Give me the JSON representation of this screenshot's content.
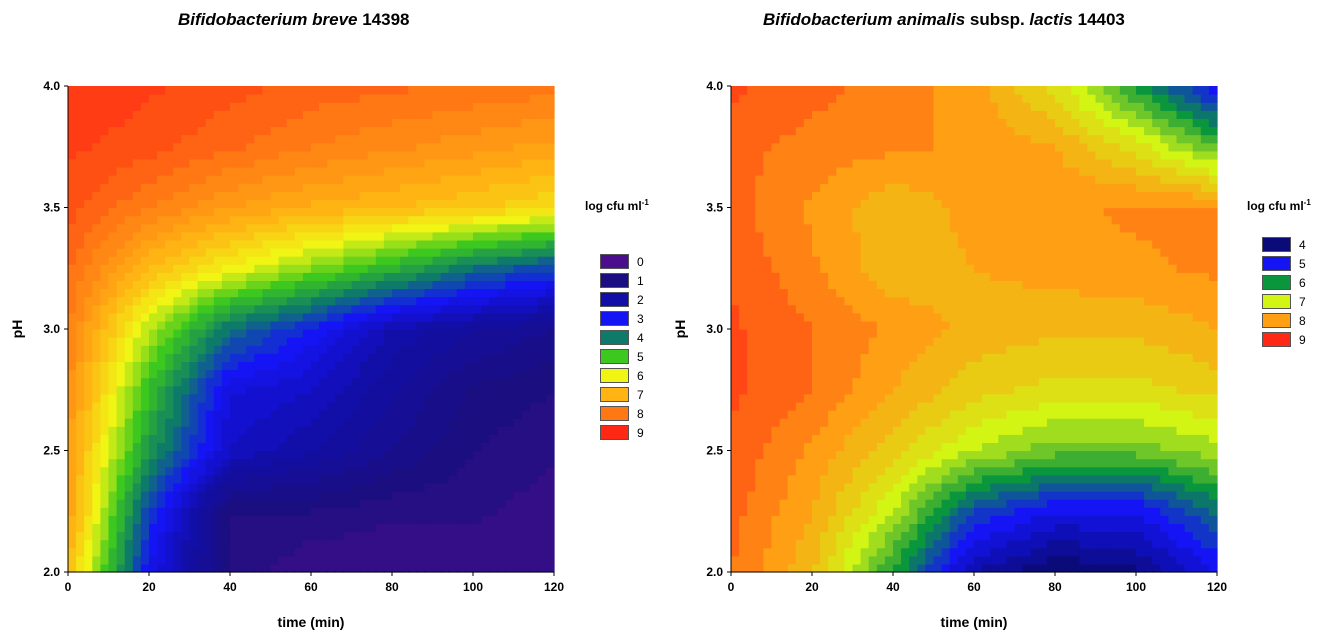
{
  "chart_data": [
    {
      "type": "heatmap",
      "subtype": "filled-contour",
      "title_parts": [
        {
          "text": "Bifidobacterium breve",
          "italic": true
        },
        {
          "text": " 14398",
          "italic": false
        }
      ],
      "xlabel": "time (min)",
      "ylabel": "pH",
      "xlim": [
        0,
        120
      ],
      "ylim": [
        2.0,
        4.0
      ],
      "x_ticks": [
        "0",
        "20",
        "40",
        "60",
        "80",
        "100",
        "120"
      ],
      "y_ticks": [
        "2.0",
        "2.5",
        "3.0",
        "3.5",
        "4.0"
      ],
      "legend_title": "log cfu ml",
      "legend_title_sup": "-1",
      "legend_position": "right",
      "levels": [
        0,
        1,
        2,
        3,
        4,
        5,
        6,
        7,
        8,
        9
      ],
      "level_labels": [
        "0",
        "1",
        "2",
        "3",
        "4",
        "5",
        "6",
        "7",
        "8",
        "9"
      ],
      "level_colors": [
        "#4B0E8C",
        "#1A0E80",
        "#120EA8",
        "#1414F5",
        "#0E7A6A",
        "#3CC81E",
        "#F0F514",
        "#FFB414",
        "#FF7814",
        "#FF2814"
      ],
      "x": [
        0,
        20,
        40,
        60,
        80,
        100,
        120
      ],
      "y": [
        2.0,
        2.25,
        2.5,
        2.75,
        3.0,
        3.25,
        3.5,
        3.75,
        4.0
      ],
      "z": [
        [
          7.0,
          3.0,
          1.0,
          0.5,
          0.5,
          0.5,
          0.5
        ],
        [
          7.5,
          3.5,
          1.0,
          1.0,
          0.8,
          0.8,
          0.6
        ],
        [
          7.5,
          4.5,
          2.5,
          2.0,
          1.5,
          1.0,
          0.8
        ],
        [
          7.8,
          5.0,
          2.8,
          2.5,
          1.8,
          1.2,
          1.0
        ],
        [
          8.0,
          5.8,
          4.0,
          3.2,
          2.2,
          1.8,
          1.5
        ],
        [
          8.3,
          7.0,
          6.2,
          5.5,
          4.8,
          4.0,
          3.5
        ],
        [
          8.6,
          8.0,
          7.5,
          7.2,
          7.0,
          6.8,
          6.5
        ],
        [
          8.8,
          8.6,
          8.3,
          8.0,
          7.8,
          7.6,
          7.4
        ],
        [
          9.0,
          8.8,
          8.6,
          8.4,
          8.3,
          8.2,
          8.1
        ]
      ]
    },
    {
      "type": "heatmap",
      "subtype": "filled-contour",
      "title_parts": [
        {
          "text": "Bifidobacterium animalis",
          "italic": true
        },
        {
          "text": " subsp. ",
          "italic": false
        },
        {
          "text": "lactis",
          "italic": true
        },
        {
          "text": " 14403",
          "italic": false
        }
      ],
      "xlabel": "time (min)",
      "ylabel": "pH",
      "xlim": [
        0,
        120
      ],
      "ylim": [
        2.0,
        4.0
      ],
      "x_ticks": [
        "0",
        "20",
        "40",
        "60",
        "80",
        "100",
        "120"
      ],
      "y_ticks": [
        "2.0",
        "2.5",
        "3.0",
        "3.5",
        "4.0"
      ],
      "legend_title": "log cfu ml",
      "legend_title_sup": "-1",
      "legend_position": "right",
      "levels": [
        4,
        5,
        6,
        7,
        8,
        9
      ],
      "level_labels": [
        "4",
        "5",
        "6",
        "7",
        "8",
        "9"
      ],
      "level_colors": [
        "#0A0A78",
        "#1414F5",
        "#0A963C",
        "#D2F514",
        "#FFA014",
        "#FF2814"
      ],
      "x": [
        0,
        20,
        40,
        60,
        80,
        100,
        120
      ],
      "y": [
        2.0,
        2.25,
        2.5,
        2.75,
        3.0,
        3.25,
        3.5,
        3.75,
        4.0
      ],
      "z": [
        [
          8.5,
          7.8,
          6.2,
          4.5,
          4.0,
          4.2,
          5.0
        ],
        [
          8.6,
          8.0,
          7.0,
          5.5,
          5.0,
          5.0,
          5.8
        ],
        [
          8.7,
          8.2,
          7.6,
          7.0,
          6.6,
          6.6,
          6.9
        ],
        [
          8.8,
          8.5,
          8.0,
          7.6,
          7.4,
          7.4,
          7.6
        ],
        [
          8.8,
          8.5,
          8.2,
          7.9,
          7.8,
          7.8,
          8.0
        ],
        [
          8.7,
          8.3,
          7.8,
          8.0,
          8.1,
          8.2,
          8.3
        ],
        [
          8.6,
          8.2,
          7.8,
          8.1,
          8.2,
          8.3,
          8.3
        ],
        [
          8.6,
          8.4,
          8.3,
          8.2,
          8.0,
          7.4,
          6.5
        ],
        [
          8.8,
          8.6,
          8.4,
          8.1,
          7.4,
          6.2,
          5.0
        ]
      ]
    }
  ]
}
